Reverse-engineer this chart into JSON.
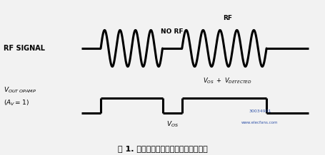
{
  "bg_color": "#f2f2f2",
  "line_color": "#000000",
  "title_text": "图 1. 射频信号检波产生的失调电压变化",
  "rf_label": "RF SIGNAL",
  "rf_annotation": "RF",
  "norf_annotation": "NO RF",
  "vout_label_line1": "$V_{OUT OPAMP}$",
  "vout_label_line2": "$(A_V = 1)$",
  "vos_detected": "$V_{OS} + V_{DETECTED}$",
  "vos_label": "$V_{OS}$",
  "watermark": "30034901",
  "site": "www.elecfans.com",
  "lw": 2.2,
  "fig_w": 4.55,
  "fig_h": 2.18,
  "dpi": 100
}
